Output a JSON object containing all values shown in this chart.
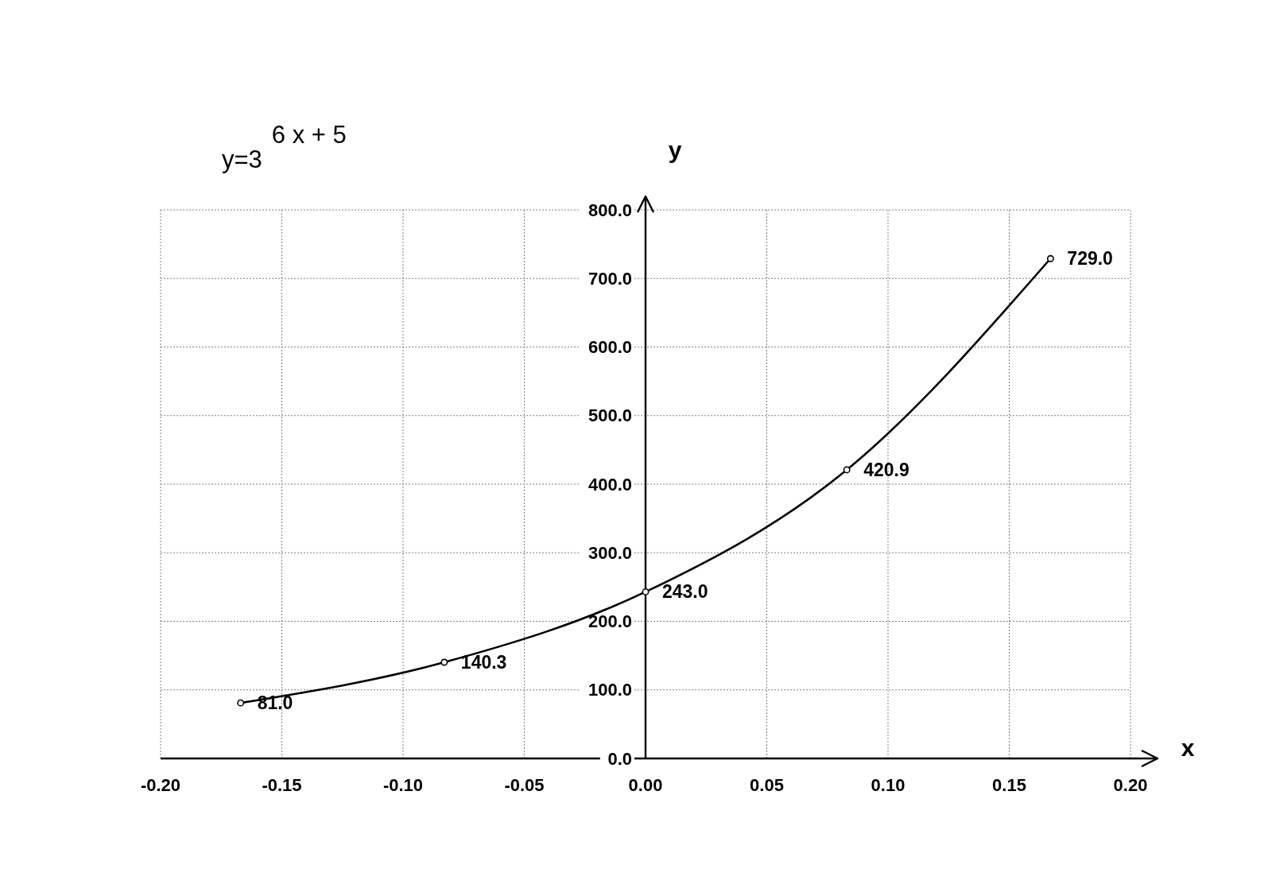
{
  "chart_data": {
    "type": "line",
    "title": "y=3$^{6 x + 5}$",
    "xlabel": "x",
    "ylabel": "y",
    "x": [
      -0.167,
      -0.083,
      0,
      0.083,
      0.167
    ],
    "values": [
      81,
      140.3,
      243,
      420.9,
      729
    ],
    "color": "#000000",
    "value_labels": [
      "81.0",
      "140.3",
      "243.0",
      "420.9",
      "729.0"
    ],
    "xlim": [
      -0.2,
      0.2
    ],
    "xticks": [
      {
        "value": -0.2,
        "label": "-0.20"
      },
      {
        "value": -0.15,
        "label": "-0.15"
      },
      {
        "value": -0.1,
        "label": "-0.10"
      },
      {
        "value": -0.05,
        "label": "-0.05"
      },
      {
        "value": 0,
        "label": "0.00"
      },
      {
        "value": 0.05,
        "label": "0.05"
      },
      {
        "value": 0.1,
        "label": "0.10"
      },
      {
        "value": 0.15,
        "label": "0.15"
      },
      {
        "value": 0.2,
        "label": "0.20"
      }
    ],
    "ylim": [
      0,
      800
    ],
    "yticks": [
      {
        "value": 0,
        "label": "0.0"
      },
      {
        "value": 100,
        "label": "100.0"
      },
      {
        "value": 200,
        "label": "200.0"
      },
      {
        "value": 300,
        "label": "300.0"
      },
      {
        "value": 400,
        "label": "400.0"
      },
      {
        "value": 500,
        "label": "500.0"
      },
      {
        "value": 600,
        "label": "600.0"
      },
      {
        "value": 700,
        "label": "700.0"
      },
      {
        "value": 800,
        "label": "800.0"
      }
    ],
    "grid": true,
    "marker": "circle",
    "line_style": "solid"
  }
}
